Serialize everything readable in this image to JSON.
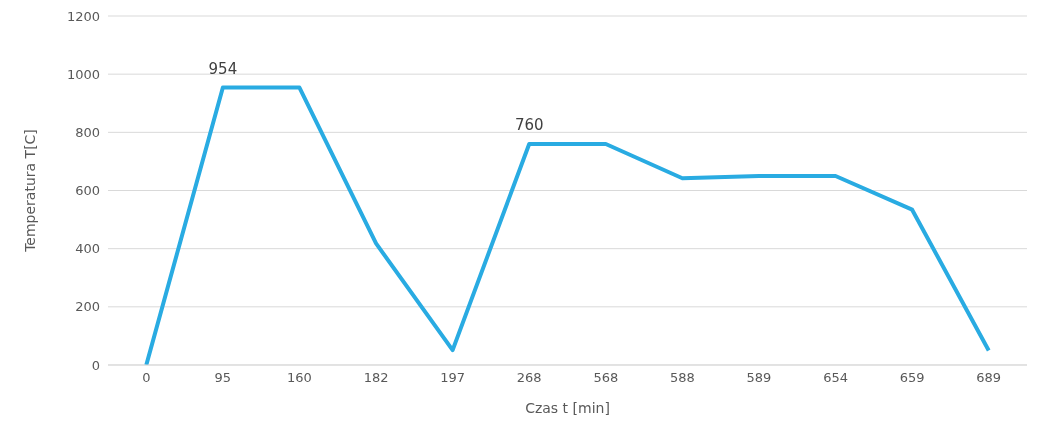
{
  "chart_data": {
    "type": "line",
    "xlabel": "Czas t [min]",
    "ylabel": "Temperatura T[C]",
    "categories": [
      "0",
      "95",
      "160",
      "182",
      "197",
      "268",
      "568",
      "588",
      "589",
      "654",
      "659",
      "689"
    ],
    "series": [
      {
        "color": "#29abe2",
        "values": [
          0,
          954,
          954,
          418,
          51,
          760,
          760,
          642,
          650,
          650,
          534,
          50
        ],
        "value_labels": [
          null,
          "954",
          null,
          null,
          null,
          "760",
          null,
          null,
          null,
          null,
          null,
          null
        ]
      }
    ],
    "ylim": [
      0,
      1200
    ],
    "yticks": [
      0,
      200,
      400,
      600,
      800,
      1000,
      1200
    ],
    "grid": "y",
    "legend": false,
    "marker": "none",
    "line_style": "solid"
  }
}
